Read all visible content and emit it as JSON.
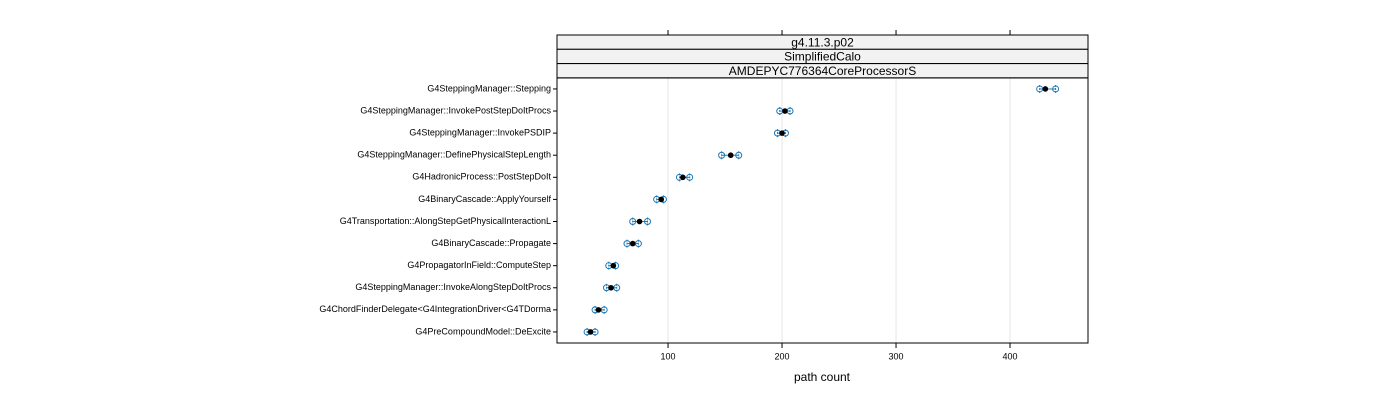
{
  "chart_data": {
    "type": "dot",
    "strips": [
      "g4.11.3.p02",
      "SimplifiedCalo",
      "AMDEPYC776364CoreProcessorS"
    ],
    "xlabel": "path count",
    "categories": [
      "G4SteppingManager::Stepping",
      "G4SteppingManager::InvokePostStepDoItProcs",
      "G4SteppingManager::InvokePSDIP",
      "G4SteppingManager::DefinePhysicalStepLength",
      "G4HadronicProcess::PostStepDoIt",
      "G4BinaryCascade::ApplyYourself",
      "G4Transportation::AlongStepGetPhysicalInteractionL",
      "G4BinaryCascade::Propagate",
      "G4PropagatorInField::ComputeStep",
      "G4SteppingManager::InvokeAlongStepDoItProcs",
      "G4ChordFinderDelegate<G4IntegrationDriver<G4TDorma",
      "G4PreCompoundModel::DeExcite"
    ],
    "values": [
      431,
      202.6,
      200,
      155,
      113,
      94,
      75,
      69,
      52,
      50,
      39,
      32
    ],
    "low": [
      426,
      198,
      196,
      147,
      110,
      90,
      69,
      64,
      48,
      46,
      36,
      29
    ],
    "high": [
      440,
      207,
      203,
      162,
      119,
      96,
      82,
      74,
      54,
      55,
      44,
      36
    ],
    "color": "#000000",
    "range_color": "#1f78b4",
    "xlim": [
      2.6,
      468.4
    ],
    "xticks": [
      100,
      200,
      300,
      400
    ],
    "grid": true
  }
}
